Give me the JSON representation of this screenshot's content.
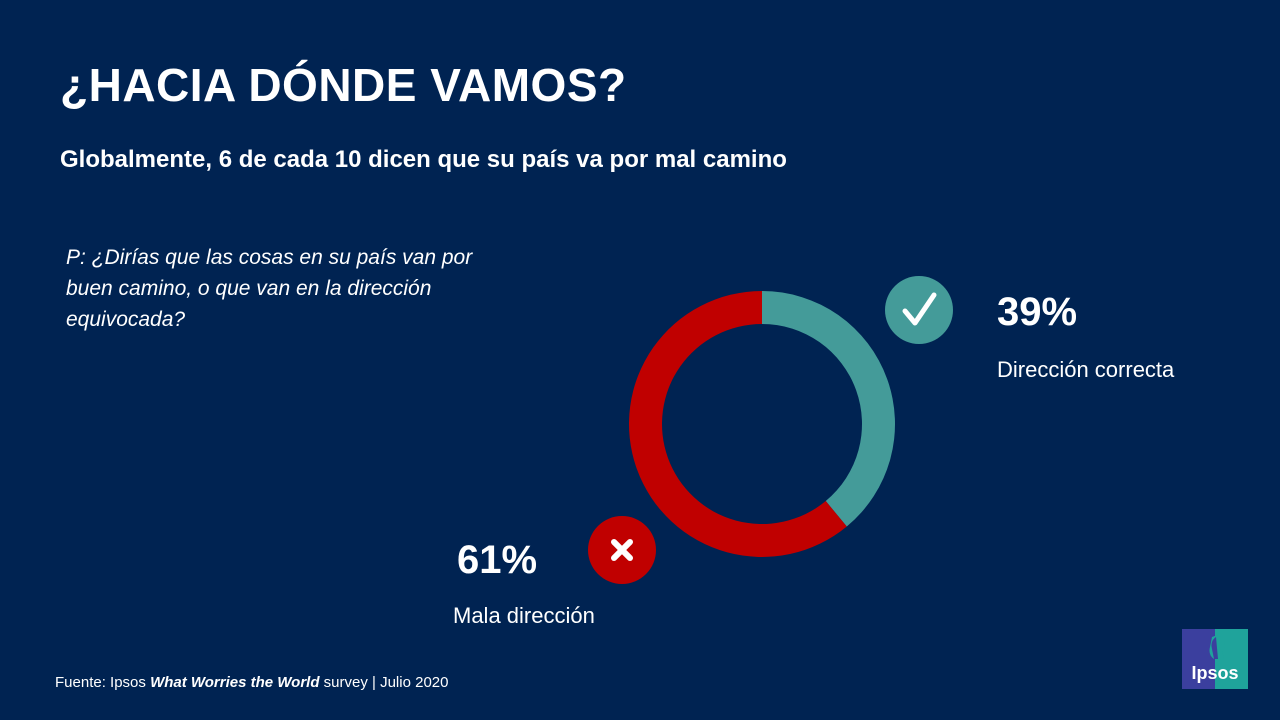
{
  "title": "¿HACIA DÓNDE VAMOS?",
  "subtitle": "Globalmente, 6 de cada 10 dicen que su país va por mal camino",
  "question": "P: ¿Dirías que las cosas en su país van por buen camino, o que van en la dirección equivocada?",
  "source": {
    "prefix": "Fuente: Ipsos ",
    "survey": "What Worries the World",
    "suffix": " survey | Julio 2020"
  },
  "logo": "Ipsos",
  "colors": {
    "background": "#002352",
    "correct": "#449b99",
    "wrong": "#c00000"
  },
  "chart_data": {
    "type": "pie",
    "donut": true,
    "slices": [
      {
        "name": "Dirección correcta",
        "value": 39,
        "label": "39%",
        "color": "#449b99",
        "icon": "check-icon"
      },
      {
        "name": "Mala dirección",
        "value": 61,
        "label": "61%",
        "color": "#c00000",
        "icon": "x-icon"
      }
    ]
  }
}
